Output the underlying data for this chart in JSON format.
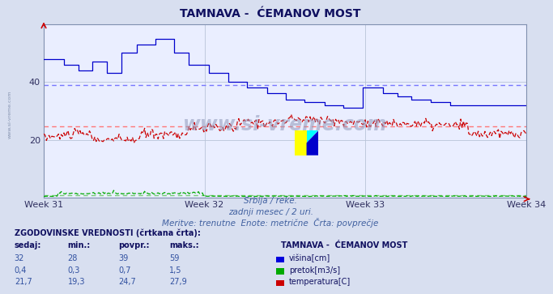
{
  "title": "TAMNAVA -  ĆEMANOV MOST",
  "subtitle1": "Srbija / reke.",
  "subtitle2": "zadnji mesec / 2 uri.",
  "subtitle3": "Meritve: trenutne  Enote: metrične  Črta: povprečje",
  "hist_label": "ZGODOVINSKE VREDNOSTI (črtkana črta):",
  "col_headers": [
    "sedaj:",
    "min.:",
    "povpr.:",
    "maks.:"
  ],
  "station_label": "TAMNAVA -  ĆEMANOV MOST",
  "rows": [
    {
      "sedaj": "32",
      "min": "28",
      "povpr": "39",
      "maks": "59",
      "color": "#0000dd",
      "legend": "višina[cm]"
    },
    {
      "sedaj": "0,4",
      "min": "0,3",
      "povpr": "0,7",
      "maks": "1,5",
      "color": "#00aa00",
      "legend": "pretok[m3/s]"
    },
    {
      "sedaj": "21,7",
      "min": "19,3",
      "povpr": "24,7",
      "maks": "27,9",
      "color": "#cc0000",
      "legend": "temperatura[C]"
    }
  ],
  "x_ticks": [
    "Week 31",
    "Week 32",
    "Week 33",
    "Week 34"
  ],
  "x_tick_pos": [
    0.0,
    0.333,
    0.666,
    0.999
  ],
  "ylim": [
    0,
    60
  ],
  "y_ticks": [
    20,
    40
  ],
  "bg_color": "#d8dff0",
  "plot_bg": "#eaeeff",
  "grid_color": "#b8c4d8",
  "avg_blue": 39,
  "avg_red": 24.7,
  "avg_green": 0.7,
  "n_points": 360
}
